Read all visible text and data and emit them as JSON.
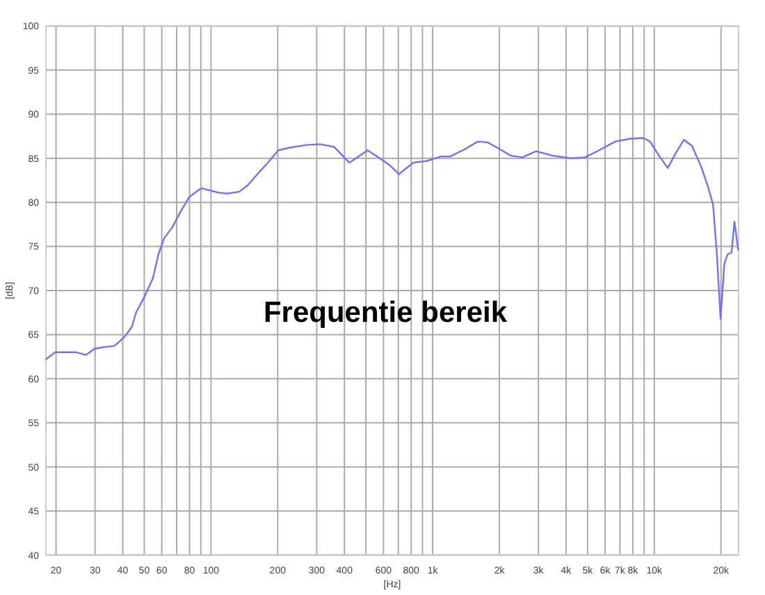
{
  "chart_data": {
    "type": "line",
    "xlabel": "[Hz]",
    "ylabel": "[dB]",
    "annotations": [
      "Frequentie bereik"
    ],
    "log": "x",
    "grid": true,
    "color": "#7070ff",
    "xlim": [
      18,
      24000
    ],
    "ylim": [
      40,
      100
    ],
    "xticks": [
      20,
      30,
      40,
      50,
      60,
      {
        "value": 70,
        "label": null
      },
      80,
      {
        "value": 90,
        "label": null
      },
      100,
      200,
      300,
      400,
      {
        "value": 500,
        "label": null
      },
      600,
      {
        "value": 700,
        "label": null
      },
      800,
      {
        "value": 900,
        "label": null
      },
      {
        "value": 1000,
        "label": "1k"
      },
      {
        "value": 2000,
        "label": "2k"
      },
      {
        "value": 3000,
        "label": "3k"
      },
      {
        "value": 4000,
        "label": "4k"
      },
      {
        "value": 5000,
        "label": "5k"
      },
      {
        "value": 6000,
        "label": "6k"
      },
      {
        "value": 7000,
        "label": "7k"
      },
      {
        "value": 8000,
        "label": "8k"
      },
      {
        "value": 9000,
        "label": null
      },
      {
        "value": 10000,
        "label": "10k"
      },
      {
        "value": 20000,
        "label": "20k"
      }
    ],
    "yticks": [
      40,
      45,
      50,
      55,
      60,
      65,
      70,
      75,
      80,
      85,
      90,
      95,
      100
    ],
    "x": [
      18,
      19.8,
      24.7,
      27.3,
      29.8,
      33,
      36.5,
      38.6,
      40.9,
      44,
      45.9,
      50.1,
      54.7,
      57.9,
      61.4,
      67,
      73.1,
      79.7,
      86.9,
      90.8,
      97.6,
      108,
      118,
      134,
      146,
      162,
      182,
      201,
      226,
      269,
      310,
      359,
      421,
      509,
      555,
      641,
      706,
      817,
      944,
      1090,
      1200,
      1390,
      1600,
      1770,
      1990,
      2250,
      2540,
      2930,
      3470,
      4220,
      4870,
      5630,
      6670,
      7710,
      8910,
      9570,
      10500,
      11500,
      12500,
      13600,
      14800,
      16300,
      17500,
      18400,
      19100,
      19600,
      19900,
      20700,
      21400,
      22300,
      23000,
      23900
    ],
    "values": [
      62.2,
      63.0,
      63.0,
      62.7,
      63.4,
      63.6,
      63.7,
      64.2,
      64.8,
      65.9,
      67.5,
      69.3,
      71.4,
      74.1,
      75.9,
      77.2,
      79.0,
      80.6,
      81.3,
      81.6,
      81.4,
      81.1,
      81.0,
      81.2,
      81.9,
      83.2,
      84.6,
      85.9,
      86.2,
      86.5,
      86.6,
      86.3,
      84.5,
      85.9,
      85.3,
      84.2,
      83.2,
      84.5,
      84.7,
      85.2,
      85.2,
      86.0,
      86.9,
      86.8,
      86.1,
      85.3,
      85.1,
      85.8,
      85.3,
      85.0,
      85.1,
      85.9,
      86.9,
      87.2,
      87.3,
      86.9,
      85.3,
      83.9,
      85.6,
      87.1,
      86.4,
      84.0,
      81.7,
      79.8,
      74.6,
      69.8,
      66.8,
      73.0,
      74.1,
      74.3,
      77.8,
      74.6
    ]
  }
}
